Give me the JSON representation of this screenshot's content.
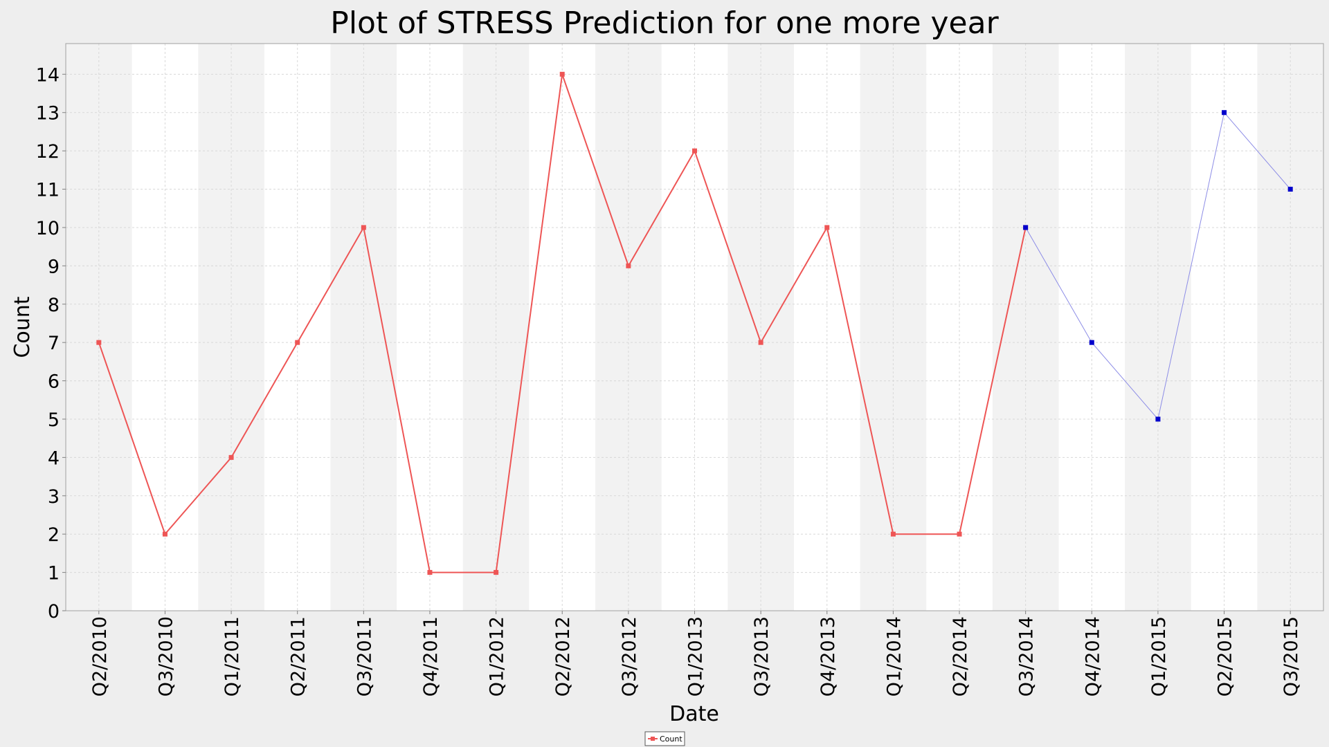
{
  "chart_data": {
    "type": "line",
    "title": "Plot of STRESS Prediction for one more year",
    "xlabel": "Date",
    "ylabel": "Count",
    "categories": [
      "Q2/2010",
      "Q3/2010",
      "Q1/2011",
      "Q2/2011",
      "Q3/2011",
      "Q4/2011",
      "Q1/2012",
      "Q2/2012",
      "Q3/2012",
      "Q1/2013",
      "Q3/2013",
      "Q4/2013",
      "Q1/2014",
      "Q2/2014",
      "Q3/2014",
      "Q4/2014",
      "Q1/2015",
      "Q2/2015",
      "Q3/2015"
    ],
    "ylim": [
      0,
      14.8
    ],
    "yticks": [
      0,
      1,
      2,
      3,
      4,
      5,
      6,
      7,
      8,
      9,
      10,
      11,
      12,
      13,
      14
    ],
    "grid": true,
    "legend_position": "bottom-center",
    "series": [
      {
        "name": "Count",
        "color": "#ee5555",
        "values": [
          7,
          2,
          4,
          7,
          10,
          1,
          1,
          14,
          9,
          12,
          7,
          10,
          2,
          2,
          10,
          null,
          null,
          null,
          null
        ]
      },
      {
        "color": "#0000cc",
        "line_color": "#8c8ce6",
        "values": [
          null,
          null,
          null,
          null,
          null,
          null,
          null,
          null,
          null,
          null,
          null,
          null,
          null,
          null,
          10,
          7,
          5,
          13,
          11
        ]
      }
    ]
  }
}
